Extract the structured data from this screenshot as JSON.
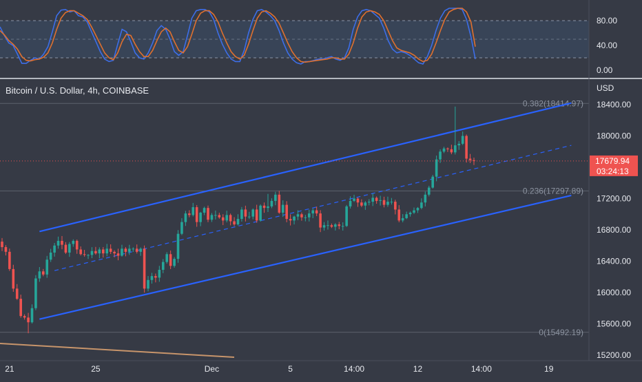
{
  "chart_data": [
    {
      "type": "line",
      "indicator": "stochastic",
      "ylim": [
        -5,
        112
      ],
      "y_ticks": [
        "80.00",
        "40.00",
        "0.00"
      ],
      "bands": [
        80,
        50,
        20
      ],
      "colors": {
        "k": "#3d6ee8",
        "d": "#e0702e",
        "band_fill": "#3a4d66"
      },
      "k": [
        70,
        56,
        44,
        40,
        26,
        11,
        11,
        16,
        20,
        18,
        26,
        38,
        62,
        88,
        97,
        98,
        94,
        96,
        88,
        86,
        78,
        62,
        46,
        30,
        18,
        14,
        16,
        42,
        66,
        62,
        46,
        28,
        20,
        18,
        28,
        44,
        64,
        72,
        66,
        50,
        30,
        24,
        30,
        56,
        84,
        96,
        98,
        98,
        94,
        82,
        60,
        42,
        28,
        18,
        14,
        14,
        32,
        60,
        82,
        96,
        98,
        94,
        88,
        80,
        64,
        44,
        28,
        18,
        12,
        10,
        14,
        14,
        16,
        18,
        18,
        20,
        22,
        18,
        16,
        20,
        36,
        66,
        86,
        96,
        98,
        96,
        90,
        84,
        68,
        48,
        34,
        28,
        30,
        28,
        24,
        18,
        12,
        10,
        22,
        40,
        64,
        84,
        96,
        100,
        100,
        100,
        98,
        82,
        54,
        18
      ],
      "d": [
        64,
        57,
        48,
        42,
        34,
        22,
        16,
        15,
        17,
        18,
        21,
        28,
        44,
        66,
        84,
        93,
        96,
        96,
        92,
        88,
        82,
        70,
        56,
        42,
        28,
        20,
        17,
        28,
        46,
        58,
        56,
        42,
        30,
        22,
        22,
        32,
        48,
        62,
        68,
        62,
        46,
        32,
        28,
        38,
        58,
        80,
        92,
        96,
        96,
        90,
        78,
        60,
        44,
        30,
        22,
        18,
        24,
        42,
        64,
        84,
        94,
        96,
        92,
        86,
        76,
        60,
        44,
        30,
        20,
        14,
        13,
        14,
        15,
        16,
        17,
        18,
        20,
        20,
        18,
        18,
        26,
        44,
        68,
        86,
        94,
        96,
        94,
        90,
        80,
        64,
        48,
        36,
        32,
        30,
        28,
        24,
        18,
        14,
        16,
        26,
        44,
        64,
        82,
        94,
        98,
        100,
        100,
        94,
        78,
        38
      ]
    },
    {
      "type": "candlestick",
      "title": "Bitcoin / U.S. Dollar, 4h, COINBASE",
      "currency": "USD",
      "ylim": [
        15100,
        18600
      ],
      "y_ticks": [
        "18400.00",
        "18000.00",
        "17600.00",
        "17200.00",
        "16800.00",
        "16400.00",
        "16000.00",
        "15600.00",
        "15200.00"
      ],
      "x_ticks": [
        "21",
        "25",
        "Dec",
        "5",
        "14:00",
        "12",
        "14:00",
        "19"
      ],
      "x_tick_index": [
        2,
        25,
        56,
        77,
        94,
        111,
        128,
        146
      ],
      "colors": {
        "up": "#26a69a",
        "down": "#ef5350",
        "channel": "#2962ff",
        "last_price_line": "#ef5350"
      },
      "closes": [
        16580,
        16520,
        16300,
        16050,
        15920,
        15700,
        15680,
        15620,
        15800,
        16180,
        16270,
        16230,
        16420,
        16510,
        16600,
        16660,
        16610,
        16510,
        16620,
        16660,
        16550,
        16490,
        16480,
        16480,
        16530,
        16500,
        16550,
        16500,
        16560,
        16520,
        16500,
        16470,
        16560,
        16520,
        16560,
        16560,
        16520,
        16560,
        16050,
        16160,
        16210,
        16190,
        16290,
        16390,
        16490,
        16340,
        16430,
        16750,
        16900,
        17010,
        16990,
        17090,
        16900,
        17020,
        17080,
        16930,
        16990,
        16990,
        16960,
        16920,
        16990,
        16910,
        16870,
        16940,
        17060,
        16970,
        16970,
        17060,
        16920,
        17110,
        17080,
        17100,
        17170,
        17250,
        17020,
        17120,
        16940,
        16920,
        16970,
        17000,
        16960,
        16960,
        17010,
        17050,
        17010,
        16830,
        16860,
        16860,
        16840,
        16870,
        16850,
        16850,
        17100,
        17170,
        17200,
        17150,
        17110,
        17150,
        17160,
        17210,
        17170,
        17180,
        17120,
        17160,
        17160,
        17060,
        16920,
        16950,
        17000,
        17020,
        17050,
        17080,
        17150,
        17250,
        17340,
        17480,
        17700,
        17800,
        17840,
        17830,
        17790,
        17880,
        17900,
        18000,
        17710,
        17690,
        17680
      ],
      "high": "18375.00",
      "low": "15480.00",
      "last_price": "17679.94",
      "countdown": "03:24:13",
      "fib_levels": [
        {
          "label": "0.382(18414.97)",
          "value": 18414.97
        },
        {
          "label": "0.236(17297.89)",
          "value": 17297.89
        },
        {
          "label": "0(15492.19)",
          "value": 15492.19
        }
      ],
      "channel": {
        "upper": [
          [
            10,
            16780
          ],
          [
            152,
            18420
          ]
        ],
        "lower": [
          [
            10,
            15660
          ],
          [
            152,
            17240
          ]
        ],
        "mid_dashed": [
          [
            14,
            16280
          ],
          [
            152,
            17880
          ]
        ]
      }
    }
  ]
}
